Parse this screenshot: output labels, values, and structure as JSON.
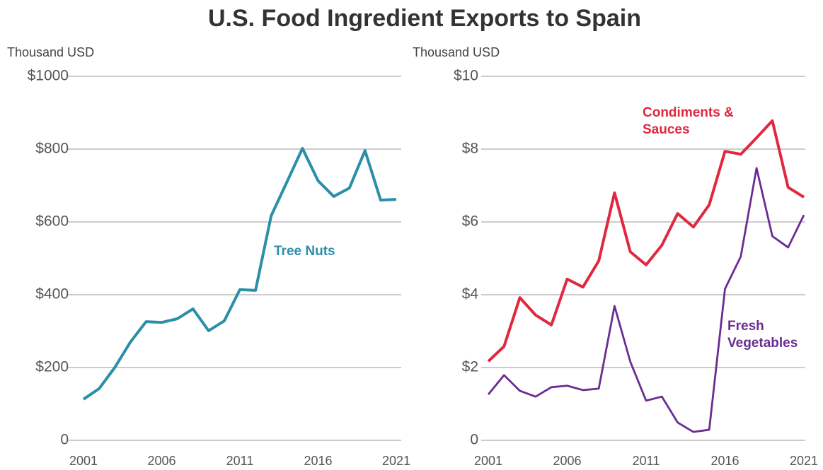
{
  "title": "U.S. Food Ingredient Exports to Spain",
  "chart_data": [
    {
      "type": "line",
      "y_label": "Thousand USD",
      "x": [
        2001,
        2002,
        2003,
        2004,
        2005,
        2006,
        2007,
        2008,
        2009,
        2010,
        2011,
        2012,
        2013,
        2014,
        2015,
        2016,
        2017,
        2018,
        2019,
        2020,
        2021
      ],
      "xlim": [
        2001,
        2021
      ],
      "xticks": [
        2001,
        2006,
        2011,
        2016,
        2021
      ],
      "ylim": [
        0,
        1000
      ],
      "yticks": [
        0,
        {
          "value": 200,
          "label": "$200"
        },
        {
          "value": 400,
          "label": "$400"
        },
        {
          "value": 600,
          "label": "$600"
        },
        {
          "value": 800,
          "label": "$800"
        },
        {
          "value": 1000,
          "label": "$1000"
        }
      ],
      "grid": true,
      "series": [
        {
          "name": "Tree Nuts",
          "color": "#2b8fa8",
          "values": [
            113,
            142,
            200,
            270,
            326,
            324,
            334,
            361,
            301,
            328,
            414,
            412,
            617,
            709,
            802,
            713,
            670,
            693,
            796,
            660,
            662
          ]
        }
      ]
    },
    {
      "type": "line",
      "y_label": "Thousand USD",
      "x": [
        2001,
        2002,
        2003,
        2004,
        2005,
        2006,
        2007,
        2008,
        2009,
        2010,
        2011,
        2012,
        2013,
        2014,
        2015,
        2016,
        2017,
        2018,
        2019,
        2020,
        2021
      ],
      "xlim": [
        2001,
        2021
      ],
      "xticks": [
        2001,
        2006,
        2011,
        2016,
        2021
      ],
      "ylim": [
        0,
        10
      ],
      "yticks": [
        0,
        {
          "value": 2,
          "label": "$2"
        },
        {
          "value": 4,
          "label": "$4"
        },
        {
          "value": 6,
          "label": "$6"
        },
        {
          "value": 8,
          "label": "$8"
        },
        {
          "value": 10,
          "label": "$10"
        }
      ],
      "grid": true,
      "series": [
        {
          "name": "Condiments & Sauces",
          "color": "#e0283e",
          "values": [
            2.17,
            2.58,
            3.92,
            3.44,
            3.17,
            4.43,
            4.21,
            4.93,
            6.8,
            5.18,
            4.82,
            5.36,
            6.23,
            5.86,
            6.47,
            7.94,
            7.86,
            8.31,
            8.78,
            6.95,
            6.68
          ]
        },
        {
          "name": "Fresh Vegetables",
          "color": "#6a2c91",
          "values": [
            1.26,
            1.79,
            1.36,
            1.2,
            1.46,
            1.5,
            1.38,
            1.42,
            3.69,
            2.16,
            1.09,
            1.2,
            0.49,
            0.23,
            0.29,
            4.16,
            5.05,
            7.48,
            5.61,
            5.3,
            6.19
          ]
        }
      ]
    }
  ]
}
